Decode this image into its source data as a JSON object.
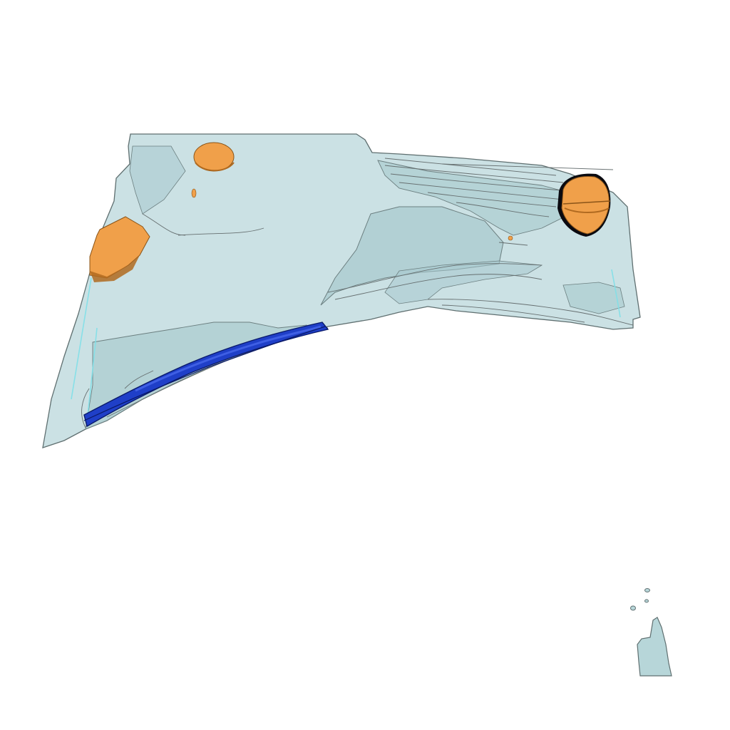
{
  "scene": {
    "colors": {
      "background": "#ffffff",
      "surface_fill": "#b7d6d9",
      "surface_stroke": "#5f6f70",
      "inner_layer": "#a7c9cd",
      "edge_highlight": "#7fe0e8",
      "orange_body": "#f0a04a",
      "orange_shadow": "#b06a20",
      "blue_body": "#1f3fc8",
      "blue_dark": "#0a1a6a"
    },
    "objects": [
      {
        "name": "translucent-surface"
      },
      {
        "name": "orange-body-left"
      },
      {
        "name": "orange-body-top"
      },
      {
        "name": "orange-body-right"
      },
      {
        "name": "blue-band"
      },
      {
        "name": "orientation-marker"
      }
    ]
  }
}
